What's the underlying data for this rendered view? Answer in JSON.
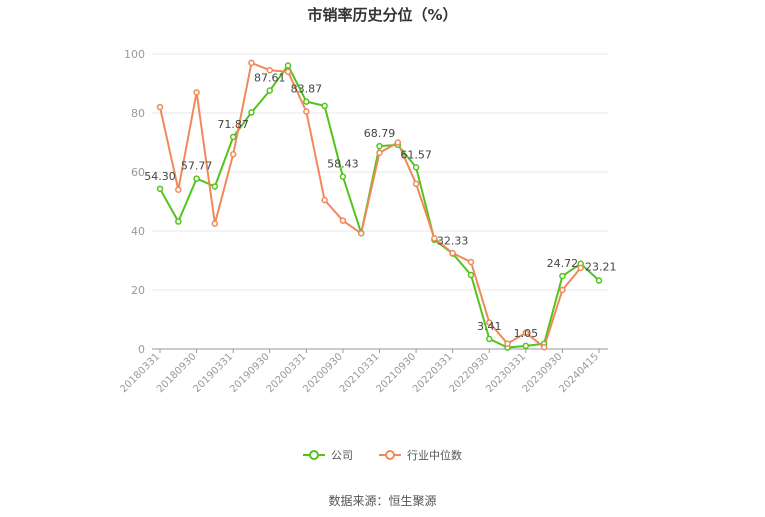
{
  "chart_data": {
    "type": "line",
    "title": "市销率历史分位（%）",
    "ylim": [
      0,
      100
    ],
    "yticks": [
      0,
      20,
      40,
      60,
      80,
      100
    ],
    "x": [
      "20180331",
      "20180630",
      "20180930",
      "20181231",
      "20190331",
      "20190630",
      "20190930",
      "20191231",
      "20200331",
      "20200630",
      "20200930",
      "20201231",
      "20210331",
      "20210630",
      "20210930",
      "20211231",
      "20220331",
      "20220630",
      "20220930",
      "20221231",
      "20230331",
      "20230630",
      "20230930",
      "20231231",
      "20240415"
    ],
    "xticks": [
      "20180331",
      "20180930",
      "20190331",
      "20190930",
      "20200331",
      "20200930",
      "20210331",
      "20210930",
      "20220331",
      "20220930",
      "20230331",
      "20230930",
      "20240415"
    ],
    "grid": true,
    "legend_position": "bottom",
    "series": [
      {
        "name": "公司",
        "color": "#52c41a",
        "values": [
          54.3,
          43.2,
          57.77,
          55.1,
          71.87,
          80.2,
          87.61,
          96.1,
          83.87,
          82.4,
          58.43,
          39.3,
          68.79,
          69.2,
          61.57,
          37.0,
          32.33,
          25.1,
          3.41,
          0.5,
          1.05,
          1.8,
          24.72,
          28.9,
          23.21
        ]
      },
      {
        "name": "行业中位数",
        "color": "#f0895a",
        "values": [
          82.0,
          54.0,
          87.0,
          42.5,
          66.0,
          97.0,
          94.5,
          94.0,
          80.5,
          50.5,
          43.5,
          39.2,
          66.5,
          70.0,
          56.0,
          37.5,
          32.5,
          29.5,
          9.0,
          1.8,
          5.5,
          0.6,
          20.0,
          27.5,
          null
        ]
      }
    ],
    "data_labels": [
      {
        "series": 0,
        "index": 0,
        "text": "54.30"
      },
      {
        "series": 0,
        "index": 2,
        "text": "57.77"
      },
      {
        "series": 0,
        "index": 4,
        "text": "71.87"
      },
      {
        "series": 0,
        "index": 6,
        "text": "87.61"
      },
      {
        "series": 0,
        "index": 8,
        "text": "83.87"
      },
      {
        "series": 0,
        "index": 10,
        "text": "58.43"
      },
      {
        "series": 0,
        "index": 12,
        "text": "68.79"
      },
      {
        "series": 0,
        "index": 14,
        "text": "61.57"
      },
      {
        "series": 0,
        "index": 16,
        "text": "32.33"
      },
      {
        "series": 0,
        "index": 18,
        "text": "3.41"
      },
      {
        "series": 0,
        "index": 20,
        "text": "1.05"
      },
      {
        "series": 0,
        "index": 22,
        "text": "24.72"
      },
      {
        "series": 0,
        "index": 24,
        "text": "23.21"
      }
    ]
  },
  "legend": {
    "company_label": "公司",
    "industry_label": "行业中位数",
    "company_color": "#52c41a",
    "industry_color": "#f0895a"
  },
  "source_text": "数据来源：恒生聚源"
}
